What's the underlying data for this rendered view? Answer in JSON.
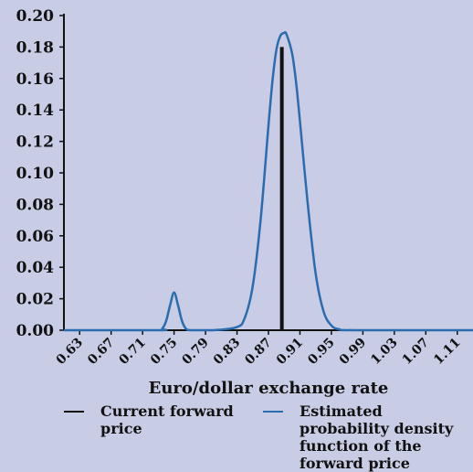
{
  "colors": {
    "background": "#c8cce4",
    "axis": "#111111",
    "forward_line": "#111111",
    "density_line": "#2a6cb0"
  },
  "chart_data": {
    "type": "line",
    "title": "",
    "xlabel": "Euro/dollar exchange rate",
    "ylabel": "",
    "xlim": [
      0.61,
      1.13
    ],
    "ylim": [
      0,
      0.2
    ],
    "x_ticks": [
      "0.63",
      "0.67",
      "0.71",
      "0.75",
      "0.79",
      "0.83",
      "0.87",
      "0.91",
      "0.95",
      "0.99",
      "1.03",
      "1.07",
      "1.11"
    ],
    "y_ticks": [
      "0.00",
      "0.02",
      "0.04",
      "0.06",
      "0.08",
      "0.10",
      "0.12",
      "0.14",
      "0.16",
      "0.18",
      "0.20"
    ],
    "grid": false,
    "legend_position": "bottom",
    "series": [
      {
        "name": "Current forward price",
        "type": "vertical_line",
        "x": 0.887,
        "y": [
          0,
          0.18
        ]
      },
      {
        "name": "Estimated probability density function of the forward price",
        "x": [
          0.61,
          0.73,
          0.735,
          0.74,
          0.745,
          0.75,
          0.755,
          0.76,
          0.765,
          0.77,
          0.775,
          0.8,
          0.83,
          0.84,
          0.85,
          0.86,
          0.87,
          0.875,
          0.88,
          0.885,
          0.89,
          0.893,
          0.9,
          0.905,
          0.91,
          0.92,
          0.93,
          0.94,
          0.95,
          0.96,
          0.98,
          1.13
        ],
        "y": [
          0,
          0,
          0.001,
          0.006,
          0.016,
          0.024,
          0.016,
          0.006,
          0.001,
          0.0,
          0,
          0,
          0.002,
          0.008,
          0.028,
          0.07,
          0.13,
          0.158,
          0.178,
          0.187,
          0.189,
          0.188,
          0.176,
          0.158,
          0.133,
          0.08,
          0.036,
          0.012,
          0.003,
          0.0006,
          0,
          0
        ]
      }
    ]
  }
}
